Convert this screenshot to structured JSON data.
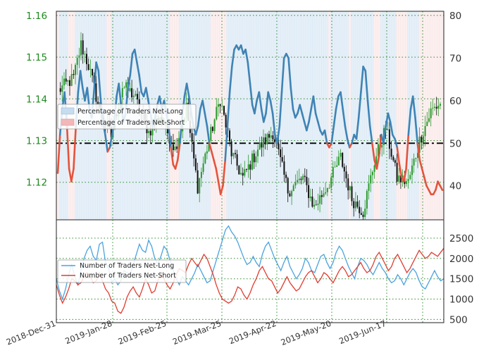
{
  "chart_data": [
    {
      "type": "candlestick+line",
      "y_left_ticks": [
        "1.12",
        "1.13",
        "1.14",
        "1.15",
        "1.16"
      ],
      "y_left_values": [
        1.12,
        1.13,
        1.14,
        1.15,
        1.16
      ],
      "y_left_range": [
        1.111,
        1.161
      ],
      "y_right_ticks": [
        "40",
        "50",
        "60",
        "70",
        "80"
      ],
      "y_right_values": [
        40,
        50,
        60,
        70,
        80
      ],
      "y_right_range": [
        32,
        81
      ],
      "reference_line": 50,
      "legend": {
        "placement": "upper-left",
        "entries": [
          {
            "label": "Percentage of Traders Net-Long",
            "color": "#c6dcf0"
          },
          {
            "label": "Percentage of Traders Net-Short",
            "color": "#f2b8b8"
          }
        ]
      },
      "sentiment_percent_long": [
        [
          0,
          43
        ],
        [
          1,
          52
        ],
        [
          2,
          58
        ],
        [
          3,
          62
        ],
        [
          4,
          55
        ],
        [
          5,
          44
        ],
        [
          6,
          41
        ],
        [
          7,
          44
        ],
        [
          8,
          54
        ],
        [
          9,
          62
        ],
        [
          10,
          67
        ],
        [
          11,
          63
        ],
        [
          12,
          60
        ],
        [
          13,
          63
        ],
        [
          14,
          58
        ],
        [
          15,
          56
        ],
        [
          16,
          62
        ],
        [
          17,
          69
        ],
        [
          18,
          67
        ],
        [
          19,
          60
        ],
        [
          20,
          55
        ],
        [
          21,
          52
        ],
        [
          22,
          48
        ],
        [
          23,
          49
        ],
        [
          24,
          52
        ],
        [
          25,
          55
        ],
        [
          26,
          61
        ],
        [
          27,
          64
        ],
        [
          28,
          59
        ],
        [
          29,
          55
        ],
        [
          30,
          57
        ],
        [
          31,
          63
        ],
        [
          32,
          66
        ],
        [
          33,
          71
        ],
        [
          34,
          72
        ],
        [
          35,
          69
        ],
        [
          36,
          66
        ],
        [
          37,
          62
        ],
        [
          38,
          61
        ],
        [
          39,
          63
        ],
        [
          40,
          60
        ],
        [
          41,
          57
        ],
        [
          42,
          54
        ],
        [
          43,
          56
        ],
        [
          44,
          59
        ],
        [
          45,
          61
        ],
        [
          46,
          58
        ],
        [
          47,
          60
        ],
        [
          48,
          57
        ],
        [
          49,
          54
        ],
        [
          50,
          49
        ],
        [
          51,
          45
        ],
        [
          52,
          44
        ],
        [
          53,
          46
        ],
        [
          54,
          50
        ],
        [
          55,
          56
        ],
        [
          56,
          61
        ],
        [
          57,
          64
        ],
        [
          58,
          61
        ],
        [
          59,
          57
        ],
        [
          60,
          54
        ],
        [
          61,
          52
        ],
        [
          62,
          54
        ],
        [
          63,
          58
        ],
        [
          64,
          60
        ],
        [
          65,
          57
        ],
        [
          66,
          54
        ],
        [
          67,
          50
        ],
        [
          68,
          48
        ],
        [
          69,
          46
        ],
        [
          70,
          44
        ],
        [
          71,
          41
        ],
        [
          72,
          38
        ],
        [
          73,
          40
        ],
        [
          74,
          46
        ],
        [
          75,
          54
        ],
        [
          76,
          62
        ],
        [
          77,
          68
        ],
        [
          78,
          72
        ],
        [
          79,
          73
        ],
        [
          80,
          72
        ],
        [
          81,
          73
        ],
        [
          82,
          71
        ],
        [
          83,
          72
        ],
        [
          84,
          69
        ],
        [
          85,
          64
        ],
        [
          86,
          59
        ],
        [
          87,
          57
        ],
        [
          88,
          60
        ],
        [
          89,
          62
        ],
        [
          90,
          58
        ],
        [
          91,
          55
        ],
        [
          92,
          57
        ],
        [
          93,
          62
        ],
        [
          94,
          60
        ],
        [
          95,
          57
        ],
        [
          96,
          52
        ],
        [
          97,
          50
        ],
        [
          98,
          54
        ],
        [
          99,
          62
        ],
        [
          100,
          70
        ],
        [
          101,
          71
        ],
        [
          102,
          70
        ],
        [
          103,
          63
        ],
        [
          104,
          58
        ],
        [
          105,
          56
        ],
        [
          106,
          57
        ],
        [
          107,
          59
        ],
        [
          108,
          57
        ],
        [
          109,
          55
        ],
        [
          110,
          53
        ],
        [
          111,
          55
        ],
        [
          112,
          58
        ],
        [
          113,
          61
        ],
        [
          114,
          57
        ],
        [
          115,
          55
        ],
        [
          116,
          53
        ],
        [
          117,
          52
        ],
        [
          118,
          53
        ],
        [
          119,
          50
        ],
        [
          120,
          49
        ],
        [
          121,
          50
        ],
        [
          122,
          54
        ],
        [
          123,
          58
        ],
        [
          124,
          61
        ],
        [
          125,
          62
        ],
        [
          126,
          58
        ],
        [
          127,
          54
        ],
        [
          128,
          51
        ],
        [
          129,
          49
        ],
        [
          130,
          50
        ],
        [
          131,
          52
        ],
        [
          132,
          51
        ],
        [
          133,
          56
        ],
        [
          134,
          62
        ],
        [
          135,
          68
        ],
        [
          136,
          67
        ],
        [
          137,
          60
        ],
        [
          138,
          54
        ],
        [
          139,
          50
        ],
        [
          140,
          46
        ],
        [
          141,
          44
        ],
        [
          142,
          47
        ],
        [
          143,
          52
        ],
        [
          144,
          50
        ],
        [
          145,
          54
        ],
        [
          146,
          57
        ],
        [
          147,
          55
        ],
        [
          148,
          52
        ],
        [
          149,
          51
        ],
        [
          150,
          49
        ],
        [
          151,
          45
        ],
        [
          152,
          42
        ],
        [
          153,
          41
        ],
        [
          154,
          44
        ],
        [
          155,
          52
        ],
        [
          156,
          58
        ],
        [
          157,
          61
        ],
        [
          158,
          56
        ],
        [
          159,
          50
        ],
        [
          160,
          46
        ],
        [
          161,
          44
        ],
        [
          162,
          42
        ],
        [
          163,
          40
        ],
        [
          164,
          39
        ],
        [
          165,
          38
        ],
        [
          166,
          38
        ],
        [
          167,
          39
        ],
        [
          168,
          41
        ],
        [
          169,
          40
        ],
        [
          170,
          39
        ]
      ]
    },
    {
      "type": "line",
      "y_ticks": [
        "500",
        "1000",
        "1500",
        "2000",
        "2500"
      ],
      "y_values": [
        500,
        1000,
        1500,
        2000,
        2500
      ],
      "y_range": [
        420,
        2950
      ],
      "x_tick_labels": [
        "2018-Dec-31",
        "2019-Jan-28",
        "2019-Feb-25",
        "2019-Mar-25",
        "2019-Apr-22",
        "2019-May-20",
        "2019-Jun-17"
      ],
      "legend": {
        "placement": "left",
        "entries": [
          {
            "label": "Number of Traders Net-Long",
            "color": "#4aa3df"
          },
          {
            "label": "Number of Traders Net-Short",
            "color": "#e03c31"
          }
        ]
      },
      "series": [
        {
          "name": "Number of Traders Net-Long",
          "color": "#4aa3df",
          "values": [
            1500,
            1200,
            1000,
            1250,
            1600,
            1850,
            1550,
            1350,
            1700,
            2000,
            2200,
            2300,
            2050,
            1950,
            2350,
            2400,
            1900,
            1750,
            1400,
            1500,
            1350,
            1450,
            1700,
            1650,
            1600,
            1850,
            2100,
            2350,
            2200,
            2150,
            2450,
            2300,
            2000,
            1850,
            2050,
            2300,
            2200,
            1950,
            1700,
            1500,
            1350,
            1550,
            1450,
            1350,
            1500,
            1650,
            1850,
            1700,
            1550,
            1400,
            1450,
            1700,
            1950,
            2200,
            2450,
            2700,
            2800,
            2650,
            2550,
            2400,
            2200,
            2000,
            1850,
            1900,
            2050,
            1900,
            1800,
            2100,
            2300,
            2400,
            2200,
            2000,
            1850,
            1700,
            1900,
            2050,
            1800,
            1650,
            1500,
            1600,
            1750,
            2000,
            1900,
            1700,
            1650,
            1850,
            2050,
            2100,
            1900,
            1750,
            1900,
            2150,
            2300,
            2200,
            2000,
            1800,
            1650,
            1500,
            1800,
            2000,
            1950,
            1850,
            1700,
            1600,
            1750,
            1900,
            1750,
            1650,
            1500,
            1400,
            1450,
            1600,
            1500,
            1350,
            1500,
            1650,
            1750,
            1650,
            1450,
            1300,
            1250,
            1400,
            1550,
            1700,
            1550,
            1450,
            1500
          ]
        },
        {
          "name": "Number of Traders Net-Short",
          "color": "#e03c31",
          "values": [
            1350,
            1100,
            900,
            1050,
            1250,
            1500,
            1450,
            1350,
            1400,
            1550,
            1650,
            1550,
            1400,
            1450,
            1650,
            1450,
            1250,
            1150,
            950,
            900,
            700,
            650,
            800,
            1050,
            1200,
            1300,
            1150,
            1050,
            1250,
            1500,
            1350,
            1150,
            1200,
            1450,
            1600,
            1500,
            1350,
            1250,
            1400,
            1600,
            1750,
            1700,
            1650,
            1850,
            2000,
            1900,
            1800,
            1950,
            2100,
            2000,
            1800,
            1600,
            1350,
            1150,
            1000,
            950,
            900,
            950,
            1100,
            1300,
            1250,
            1100,
            1000,
            1150,
            1350,
            1500,
            1700,
            1800,
            1650,
            1500,
            1450,
            1300,
            1150,
            1250,
            1400,
            1550,
            1400,
            1300,
            1200,
            1250,
            1400,
            1550,
            1650,
            1700,
            1550,
            1400,
            1500,
            1650,
            1600,
            1500,
            1400,
            1550,
            1700,
            1800,
            1700,
            1550,
            1600,
            1700,
            1800,
            1900,
            1750,
            1650,
            1700,
            1850,
            2050,
            2150,
            2000,
            1850,
            1700,
            1800,
            2000,
            2100,
            1950,
            1800,
            1650,
            1750,
            1900,
            2050,
            2200,
            2100,
            2000,
            2050,
            2150,
            2100,
            2050,
            2150,
            2250
          ]
        }
      ]
    }
  ]
}
